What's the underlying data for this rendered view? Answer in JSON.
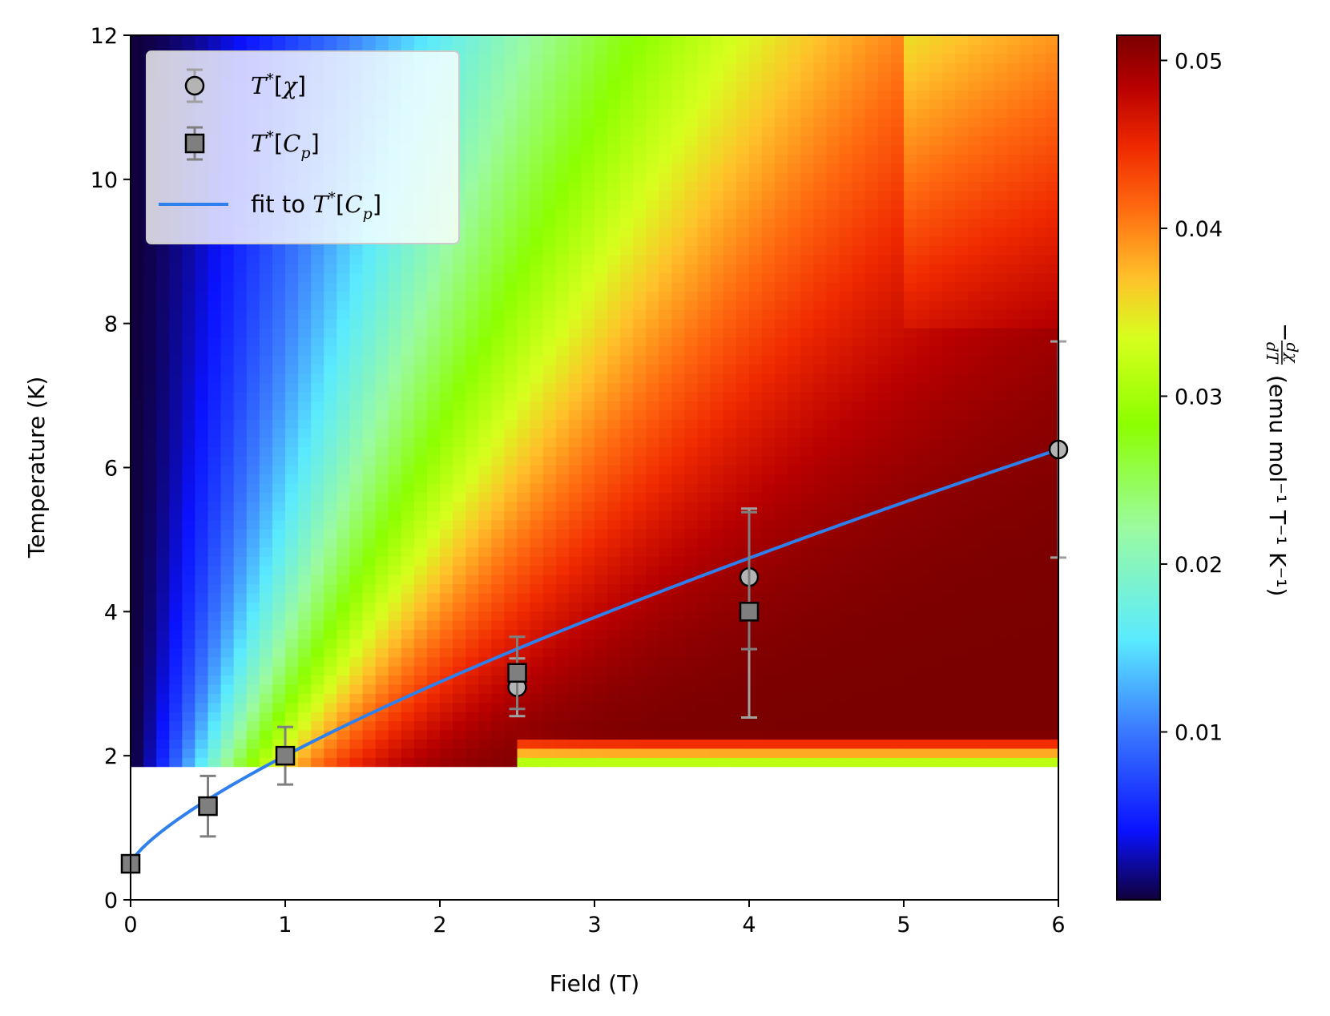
{
  "chart_data": {
    "type": "heatmap",
    "xlabel": "Field (T)",
    "ylabel": "Temperature (K)",
    "xlim": [
      0,
      6
    ],
    "ylim": [
      0,
      12
    ],
    "xticks": [
      "0",
      "1",
      "2",
      "3",
      "4",
      "5",
      "6"
    ],
    "yticks": [
      "0",
      "2",
      "4",
      "6",
      "8",
      "10",
      "12"
    ],
    "heatmap": {
      "field_range": [
        0,
        6
      ],
      "temperature_range": [
        1.85,
        12
      ],
      "description_of_values": "-dchi/dT increasing with field; maximum along ridge"
    },
    "colorbar": {
      "range": [
        0.0,
        0.0515
      ],
      "ticks": [
        "0.01",
        "0.02",
        "0.03",
        "0.04",
        "0.05"
      ],
      "label_parts": {
        "minus": "−",
        "frac_num": "dχ",
        "frac_den": "dT",
        "units": "(emu mol⁻¹ T⁻¹ K⁻¹)"
      }
    },
    "series": [
      {
        "name": "T*[χ]",
        "marker": "circle",
        "color": "#b4b4b4",
        "points": [
          {
            "x": 2.5,
            "y": 2.95,
            "yerr_low": 0.4,
            "yerr_high": 0.4
          },
          {
            "x": 4.0,
            "y": 4.48,
            "yerr_low": 1.95,
            "yerr_high": 0.95
          },
          {
            "x": 6.0,
            "y": 6.25,
            "yerr_low": 1.5,
            "yerr_high": 1.5
          }
        ]
      },
      {
        "name": "T*[Cp]",
        "marker": "square",
        "color": "#7f7f7f",
        "points": [
          {
            "x": 0.0,
            "y": 0.5,
            "yerr_low": 0.0,
            "yerr_high": 0.0
          },
          {
            "x": 0.5,
            "y": 1.3,
            "yerr_low": 0.42,
            "yerr_high": 0.42
          },
          {
            "x": 1.0,
            "y": 2.0,
            "yerr_low": 0.4,
            "yerr_high": 0.4
          },
          {
            "x": 2.5,
            "y": 3.15,
            "yerr_low": 0.5,
            "yerr_high": 0.5
          },
          {
            "x": 4.0,
            "y": 4.0,
            "yerr_low": 0.52,
            "yerr_high": 1.38
          }
        ]
      },
      {
        "name": "fit to T*[Cp]",
        "type": "line",
        "color": "#2f80ed",
        "function": "T = 0.5 + 1.5 * B^0.75"
      }
    ],
    "legend": {
      "position": "top-left",
      "entries": [
        {
          "prefix": "",
          "base": "T",
          "sup": "*",
          "open": "[",
          "sym": "χ",
          "sub": "",
          "close": "]"
        },
        {
          "prefix": "",
          "base": "T",
          "sup": "*",
          "open": "[",
          "sym": "C",
          "sub": "p",
          "close": "]"
        },
        {
          "prefix": "fit to ",
          "base": "T",
          "sup": "*",
          "open": "[",
          "sym": "C",
          "sub": "p",
          "close": "]"
        }
      ]
    }
  }
}
